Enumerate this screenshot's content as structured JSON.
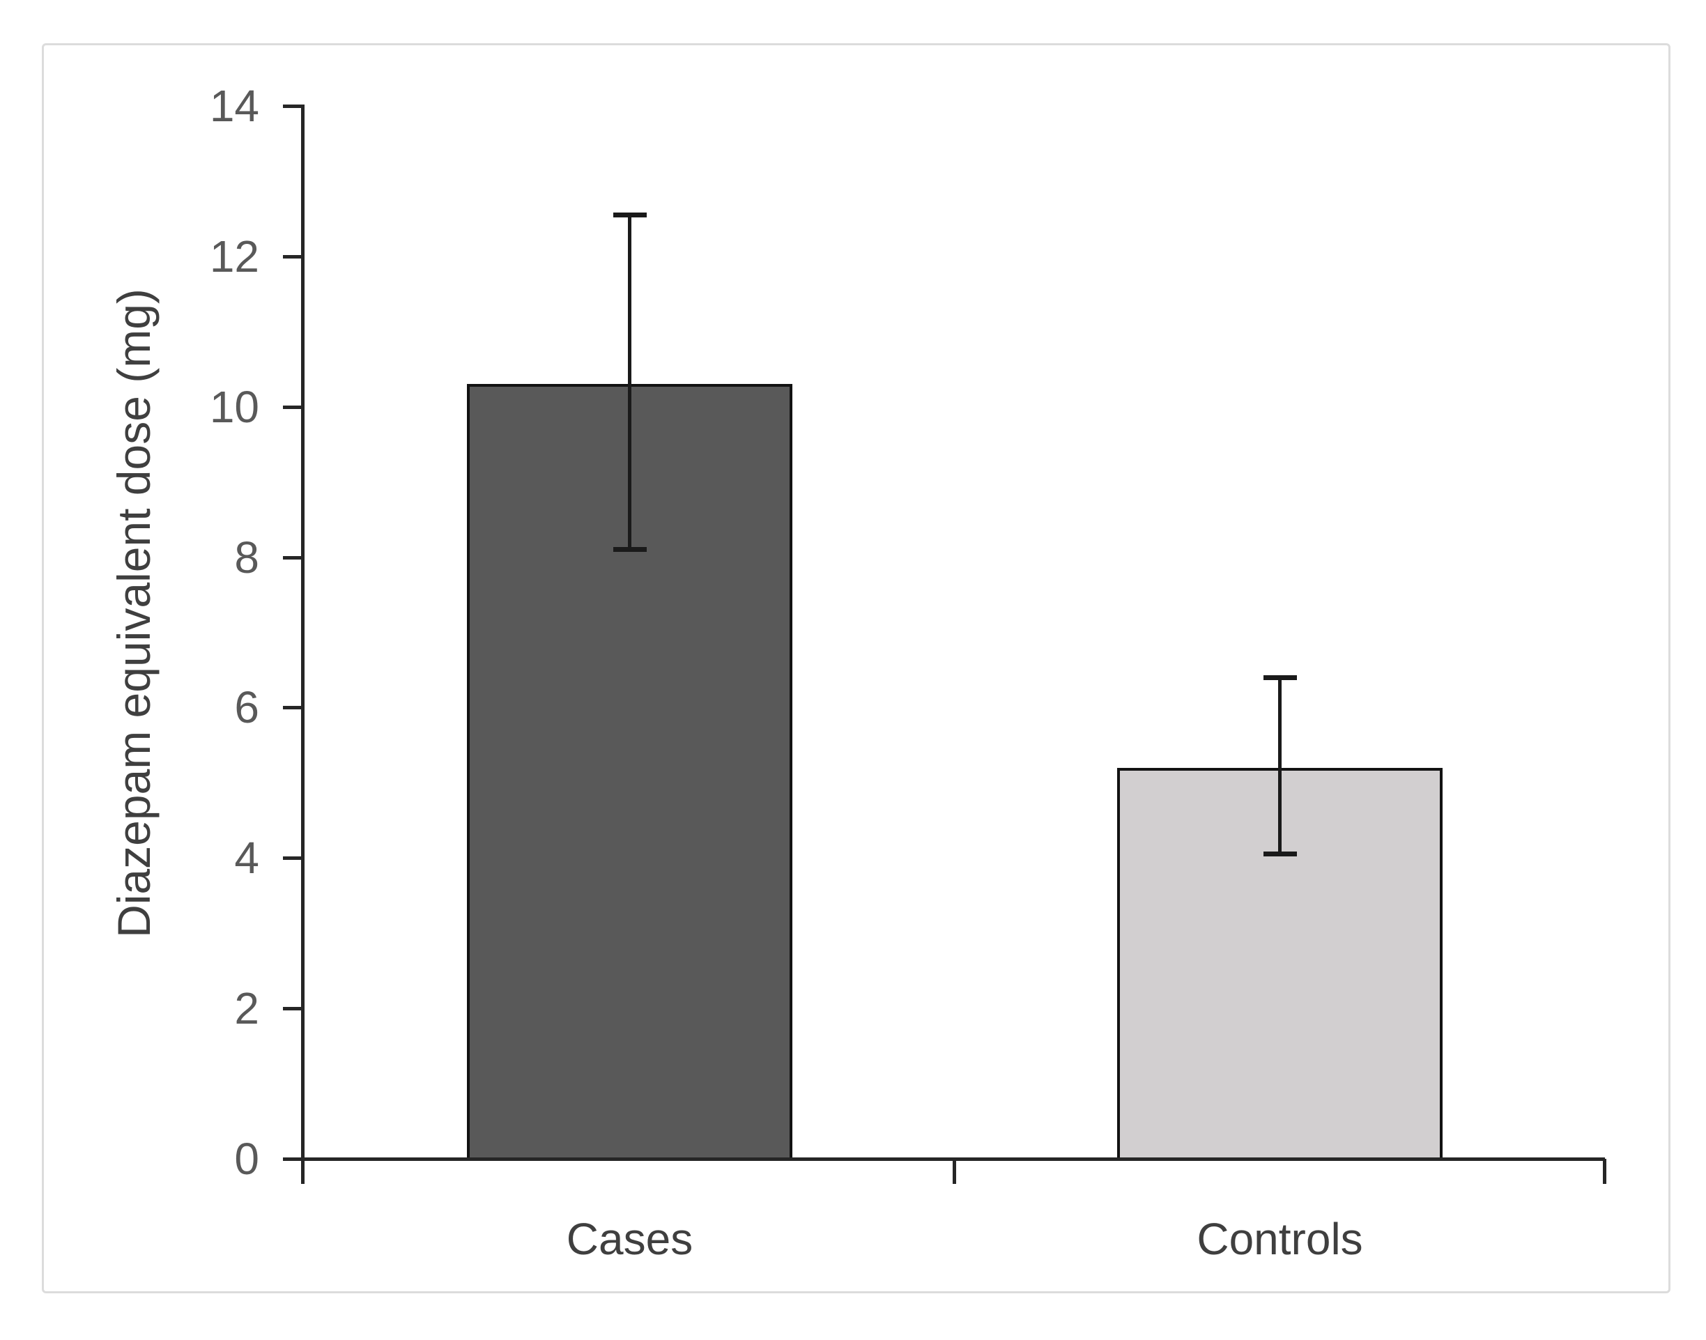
{
  "chart_data": {
    "type": "bar",
    "title": "",
    "xlabel": "",
    "ylabel": "Diazepam equivalent dose (mg)",
    "categories": [
      "Cases",
      "Controls"
    ],
    "values": [
      10.3,
      5.2
    ],
    "error_upper": [
      12.55,
      6.4
    ],
    "error_lower": [
      8.1,
      4.05
    ],
    "bar_colors": [
      "#595959",
      "#d2cfd0"
    ],
    "ylim": [
      0,
      14
    ],
    "yticks": [
      0,
      2,
      4,
      6,
      8,
      10,
      12,
      14
    ],
    "grid": false,
    "legend": "none",
    "error_bar_style": "caps-both-ends"
  },
  "figure": {
    "background": "#ffffff",
    "frame_color": "#dcdcdc",
    "axis_color": "#262626",
    "bar_border_color": "#121212",
    "error_color": "#1a1a1a",
    "tick_label_color": "#595959",
    "category_label_color": "#3f3f3f",
    "ylabel_color": "#3f3f3f"
  }
}
